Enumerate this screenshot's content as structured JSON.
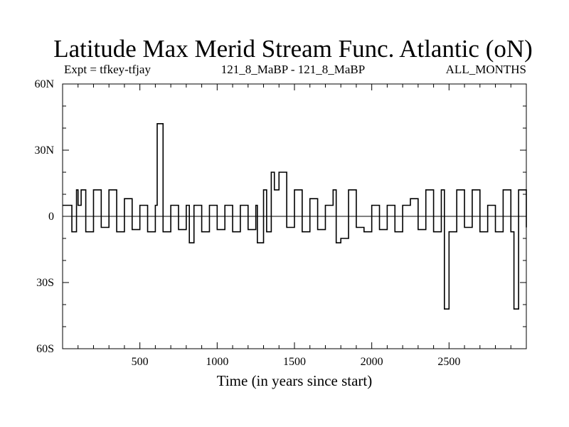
{
  "chart_data": {
    "type": "line",
    "title": "Latitude Max Merid Stream Func. Atlantic (oN)",
    "subtitle_left": "Expt = tfkey-tfjay",
    "subtitle_center": "121_8_MaBP - 121_8_MaBP",
    "subtitle_right": "ALL_MONTHS",
    "xlabel": "Time (in years since start)",
    "ylabel": "",
    "xlim": [
      0,
      3000
    ],
    "ylim": [
      -60,
      60
    ],
    "x_ticks": [
      500,
      1000,
      1500,
      2000,
      2500
    ],
    "x_tick_labels": [
      "500",
      "1000",
      "1500",
      "2000",
      "2500"
    ],
    "y_ticks": [
      60,
      30,
      0,
      -30,
      -60
    ],
    "y_tick_labels": [
      "60N",
      "30N",
      "0",
      "30S",
      "60S"
    ],
    "grid": false,
    "series": [
      {
        "values_note": "",
        "x": [
          0,
          60,
          90,
          100,
          120,
          150,
          200,
          250,
          300,
          350,
          400,
          450,
          500,
          550,
          600,
          612,
          650,
          700,
          750,
          800,
          820,
          850,
          900,
          950,
          1000,
          1050,
          1100,
          1150,
          1200,
          1250,
          1260,
          1300,
          1320,
          1350,
          1370,
          1400,
          1450,
          1500,
          1550,
          1600,
          1650,
          1700,
          1750,
          1770,
          1800,
          1850,
          1900,
          1950,
          2000,
          2050,
          2100,
          2150,
          2200,
          2250,
          2300,
          2350,
          2400,
          2450,
          2470,
          2500,
          2550,
          2600,
          2650,
          2700,
          2750,
          2800,
          2850,
          2900,
          2920,
          2950,
          3000
        ],
        "values": [
          5,
          -7,
          12,
          5,
          12,
          -7,
          12,
          -5,
          12,
          -7,
          8,
          -6,
          5,
          -7,
          5,
          42,
          -7,
          5,
          -6,
          5,
          -12,
          5,
          -7,
          5,
          -6,
          5,
          -7,
          5,
          -6,
          5,
          -12,
          12,
          -7,
          20,
          12,
          20,
          -5,
          12,
          -7,
          8,
          -6,
          5,
          12,
          -12,
          -10,
          12,
          -5,
          -7,
          5,
          -6,
          5,
          -7,
          5,
          8,
          -6,
          12,
          -7,
          12,
          -42,
          -7,
          12,
          -5,
          12,
          -7,
          5,
          -7,
          12,
          -7,
          -42,
          12,
          -5
        ]
      }
    ]
  }
}
